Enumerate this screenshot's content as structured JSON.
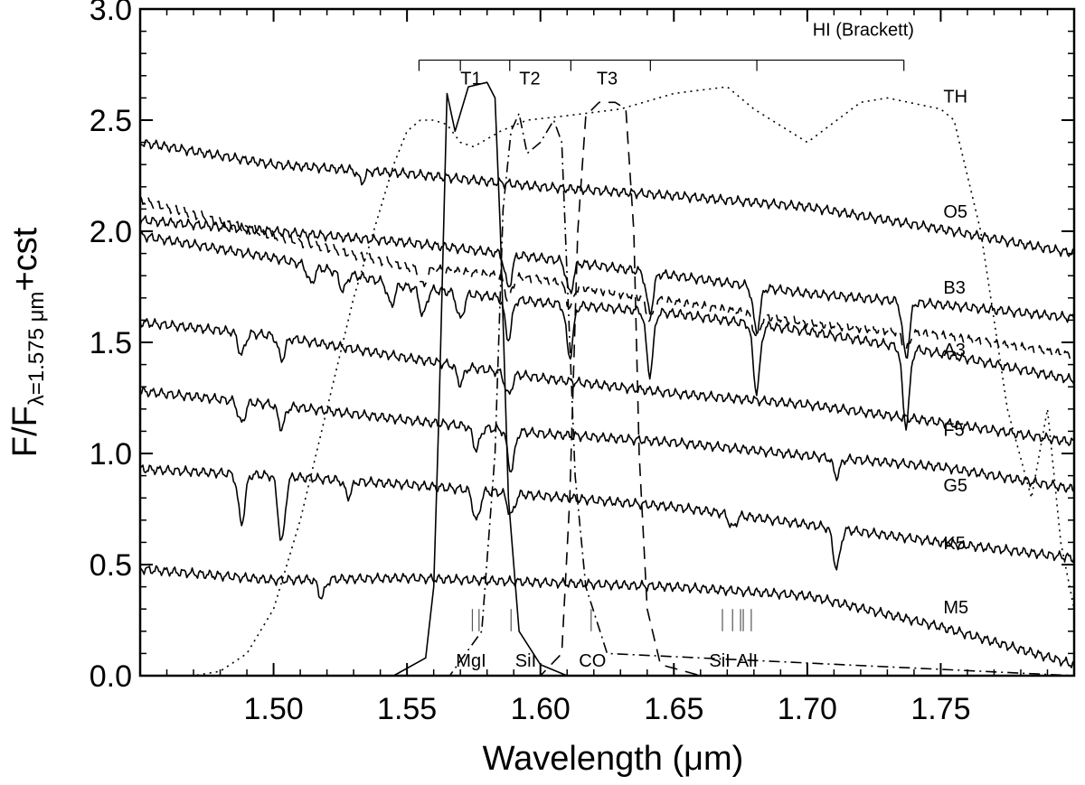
{
  "chart_data": {
    "type": "line",
    "xlabel": "Wavelength (μm)",
    "ylabel": {
      "main": "F/F",
      "sub": "λ=1.575 μm",
      "suffix": "+cst"
    },
    "xlim": [
      1.45,
      1.8
    ],
    "ylim": [
      0.0,
      3.0
    ],
    "x_ticks": [
      1.5,
      1.55,
      1.6,
      1.65,
      1.7,
      1.75
    ],
    "x_tick_labels": [
      "1.50",
      "1.55",
      "1.60",
      "1.65",
      "1.70",
      "1.75"
    ],
    "y_ticks": [
      0.0,
      0.5,
      1.0,
      1.5,
      2.0,
      2.5,
      3.0
    ],
    "y_tick_labels": [
      "0.0",
      "0.5",
      "1.0",
      "1.5",
      "2.0",
      "2.5",
      "3.0"
    ],
    "spectra": [
      {
        "name": "O5",
        "style": "solid",
        "x": [
          1.45,
          1.5,
          1.55,
          1.6,
          1.65,
          1.7,
          1.75,
          1.8
        ],
        "y": [
          2.4,
          2.3,
          2.26,
          2.2,
          2.16,
          2.11,
          2.01,
          1.9
        ],
        "lines": [
          {
            "x": 1.533,
            "depth": 0.05
          }
        ]
      },
      {
        "name": "B3",
        "style": "solid",
        "x": [
          1.45,
          1.5,
          1.55,
          1.6,
          1.65,
          1.7,
          1.75,
          1.8
        ],
        "y": [
          2.05,
          2.0,
          1.95,
          1.88,
          1.8,
          1.72,
          1.67,
          1.61
        ],
        "lines": [
          {
            "x": 1.588,
            "depth": 0.15
          },
          {
            "x": 1.611,
            "depth": 0.14
          },
          {
            "x": 1.641,
            "depth": 0.18
          },
          {
            "x": 1.681,
            "depth": 0.2
          },
          {
            "x": 1.737,
            "depth": 0.25
          }
        ]
      },
      {
        "name": "A3",
        "style": "solid",
        "x": [
          1.45,
          1.5,
          1.55,
          1.6,
          1.65,
          1.7,
          1.75,
          1.8
        ],
        "y": [
          1.98,
          1.88,
          1.75,
          1.68,
          1.63,
          1.55,
          1.45,
          1.33
        ],
        "lines": [
          {
            "x": 1.514,
            "depth": 0.08
          },
          {
            "x": 1.526,
            "depth": 0.08
          },
          {
            "x": 1.544,
            "depth": 0.1
          },
          {
            "x": 1.556,
            "depth": 0.12
          },
          {
            "x": 1.57,
            "depth": 0.12
          },
          {
            "x": 1.588,
            "depth": 0.18
          },
          {
            "x": 1.611,
            "depth": 0.23
          },
          {
            "x": 1.641,
            "depth": 0.28
          },
          {
            "x": 1.681,
            "depth": 0.3
          },
          {
            "x": 1.737,
            "depth": 0.35
          }
        ]
      },
      {
        "name": "A3 (dashed)",
        "style": "dashed",
        "x": [
          1.45,
          1.5,
          1.55,
          1.6,
          1.65,
          1.7,
          1.75,
          1.8
        ],
        "y": [
          2.14,
          1.98,
          1.84,
          1.78,
          1.68,
          1.59,
          1.53,
          1.44
        ],
        "lines": [
          {
            "x": 1.556,
            "depth": 0.08
          },
          {
            "x": 1.588,
            "depth": 0.1
          },
          {
            "x": 1.611,
            "depth": 0.1
          },
          {
            "x": 1.641,
            "depth": 0.1
          },
          {
            "x": 1.681,
            "depth": 0.1
          },
          {
            "x": 1.737,
            "depth": 0.08
          }
        ]
      },
      {
        "name": "F5",
        "style": "solid",
        "x": [
          1.45,
          1.5,
          1.55,
          1.6,
          1.65,
          1.7,
          1.75,
          1.8
        ],
        "y": [
          1.59,
          1.53,
          1.43,
          1.34,
          1.27,
          1.22,
          1.14,
          1.05
        ],
        "lines": [
          {
            "x": 1.488,
            "depth": 0.1
          },
          {
            "x": 1.503,
            "depth": 0.1
          },
          {
            "x": 1.57,
            "depth": 0.08
          },
          {
            "x": 1.588,
            "depth": 0.1
          }
        ]
      },
      {
        "name": "G5",
        "style": "solid",
        "x": [
          1.45,
          1.5,
          1.55,
          1.6,
          1.65,
          1.7,
          1.75,
          1.8
        ],
        "y": [
          1.28,
          1.22,
          1.15,
          1.09,
          1.05,
          0.99,
          0.94,
          0.84
        ],
        "lines": [
          {
            "x": 1.488,
            "depth": 0.1
          },
          {
            "x": 1.503,
            "depth": 0.1
          },
          {
            "x": 1.576,
            "depth": 0.1
          },
          {
            "x": 1.589,
            "depth": 0.18
          },
          {
            "x": 1.711,
            "depth": 0.08
          }
        ]
      },
      {
        "name": "K5",
        "style": "solid",
        "x": [
          1.45,
          1.5,
          1.55,
          1.6,
          1.65,
          1.7,
          1.75,
          1.8
        ],
        "y": [
          0.93,
          0.9,
          0.86,
          0.81,
          0.76,
          0.68,
          0.6,
          0.53
        ],
        "lines": [
          {
            "x": 1.488,
            "depth": 0.22
          },
          {
            "x": 1.503,
            "depth": 0.3
          },
          {
            "x": 1.528,
            "depth": 0.07
          },
          {
            "x": 1.576,
            "depth": 0.14
          },
          {
            "x": 1.589,
            "depth": 0.1
          },
          {
            "x": 1.672,
            "depth": 0.06
          },
          {
            "x": 1.711,
            "depth": 0.18
          }
        ]
      },
      {
        "name": "M5",
        "style": "solid",
        "x": [
          1.45,
          1.5,
          1.55,
          1.6,
          1.65,
          1.7,
          1.75,
          1.8
        ],
        "y": [
          0.48,
          0.43,
          0.44,
          0.42,
          0.4,
          0.36,
          0.22,
          0.05
        ],
        "lines": [
          {
            "x": 1.518,
            "depth": 0.08
          }
        ]
      }
    ],
    "spectrum_labels": [
      {
        "text": "TH",
        "x": 1.751,
        "y": 2.58
      },
      {
        "text": "O5",
        "x": 1.751,
        "y": 2.06
      },
      {
        "text": "B3",
        "x": 1.751,
        "y": 1.72
      },
      {
        "text": "A3",
        "x": 1.751,
        "y": 1.44
      },
      {
        "text": "F5",
        "x": 1.751,
        "y": 1.08
      },
      {
        "text": "G5",
        "x": 1.751,
        "y": 0.83
      },
      {
        "text": "K5",
        "x": 1.751,
        "y": 0.57
      },
      {
        "text": "M5",
        "x": 1.751,
        "y": 0.28
      }
    ],
    "filters": [
      {
        "name": "T1",
        "style": "solid",
        "x": [
          1.45,
          1.545,
          1.557,
          1.56,
          1.562,
          1.565,
          1.568,
          1.573,
          1.58,
          1.583,
          1.585,
          1.588,
          1.592,
          1.6,
          1.61,
          1.8
        ],
        "y": [
          0.0,
          0.0,
          0.08,
          0.4,
          1.2,
          2.62,
          2.45,
          2.65,
          2.67,
          2.6,
          2.0,
          0.8,
          0.2,
          0.05,
          0.0,
          0.0
        ]
      },
      {
        "name": "T2",
        "style": "dashdot",
        "x": [
          1.45,
          1.566,
          1.578,
          1.583,
          1.586,
          1.589,
          1.592,
          1.595,
          1.6,
          1.605,
          1.608,
          1.61,
          1.613,
          1.617,
          1.625,
          1.8
        ],
        "y": [
          0.0,
          0.0,
          0.2,
          1.0,
          2.1,
          2.45,
          2.53,
          2.35,
          2.4,
          2.5,
          2.4,
          1.8,
          0.9,
          0.4,
          0.1,
          0.0
        ]
      },
      {
        "name": "T3",
        "style": "dashed",
        "x": [
          1.45,
          1.6,
          1.608,
          1.611,
          1.614,
          1.617,
          1.622,
          1.628,
          1.632,
          1.635,
          1.637,
          1.64,
          1.645,
          1.66,
          1.8
        ],
        "y": [
          0.0,
          0.0,
          0.1,
          0.8,
          2.0,
          2.52,
          2.58,
          2.58,
          2.55,
          2.0,
          1.0,
          0.3,
          0.05,
          0.0,
          0.0
        ]
      },
      {
        "name": "TH",
        "style": "dotted",
        "x": [
          1.45,
          1.46,
          1.47,
          1.48,
          1.49,
          1.5,
          1.51,
          1.52,
          1.53,
          1.54,
          1.545,
          1.55,
          1.555,
          1.56,
          1.565,
          1.57,
          1.575,
          1.585,
          1.595,
          1.61,
          1.63,
          1.65,
          1.67,
          1.68,
          1.7,
          1.72,
          1.73,
          1.75,
          1.755,
          1.765,
          1.775,
          1.784,
          1.79,
          1.795,
          1.8
        ],
        "y": [
          0.0,
          0.0,
          0.0,
          0.02,
          0.1,
          0.3,
          0.7,
          1.2,
          1.7,
          2.1,
          2.3,
          2.45,
          2.5,
          2.5,
          2.48,
          2.4,
          2.38,
          2.45,
          2.5,
          2.52,
          2.55,
          2.62,
          2.65,
          2.55,
          2.4,
          2.58,
          2.6,
          2.55,
          2.5,
          2.0,
          1.2,
          0.8,
          1.2,
          0.6,
          0.3
        ]
      }
    ],
    "filter_labels": [
      {
        "text": "T1",
        "x": 1.574,
        "y": 2.66
      },
      {
        "text": "T2",
        "x": 1.596,
        "y": 2.66
      },
      {
        "text": "T3",
        "x": 1.625,
        "y": 2.66
      }
    ],
    "hi_series": {
      "label": "HI (Brackett)",
      "label_x": 1.721,
      "label_y": 2.88,
      "y": 2.77,
      "x_start": 1.5545,
      "x_end": 1.7362,
      "ticks": [
        1.5545,
        1.57,
        1.5885,
        1.6114,
        1.6412,
        1.6811,
        1.7362
      ]
    },
    "line_markers": [
      {
        "label": "MgI",
        "label_x": 1.574,
        "x": [
          1.5745,
          1.577
        ]
      },
      {
        "label": "SiI",
        "label_x": 1.5945,
        "x": [
          1.589
        ]
      },
      {
        "label": "CO",
        "label_x": 1.6195,
        "x": [
          1.619
        ]
      },
      {
        "label": "SiI",
        "label_x": 1.6672,
        "x": [
          1.6682
        ]
      },
      {
        "label": "AlI",
        "label_x": 1.6775,
        "x": [
          1.672,
          1.675,
          1.676,
          1.679
        ]
      }
    ]
  }
}
